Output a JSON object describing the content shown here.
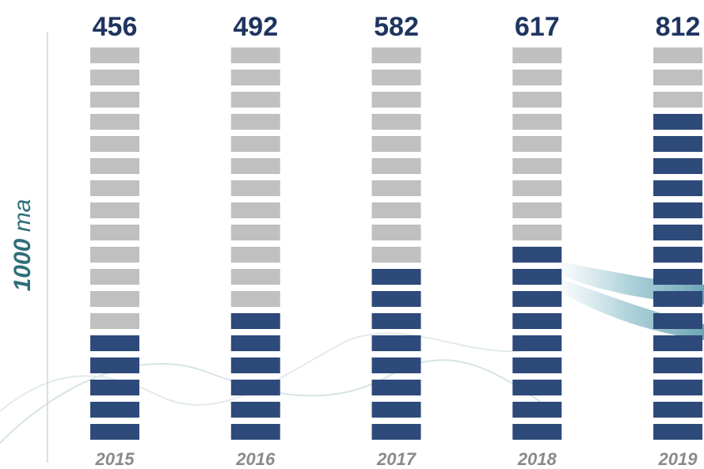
{
  "chart_data": {
    "type": "pictogram-bar",
    "y_label": "1000 ma",
    "categories": [
      "2015",
      "2016",
      "2017",
      "2018",
      "2019"
    ],
    "values": [
      456,
      492,
      582,
      617,
      812
    ],
    "ylim": [
      280,
      920
    ],
    "color": "#2e4a7a",
    "empty_color": "#c0c0c0"
  }
}
